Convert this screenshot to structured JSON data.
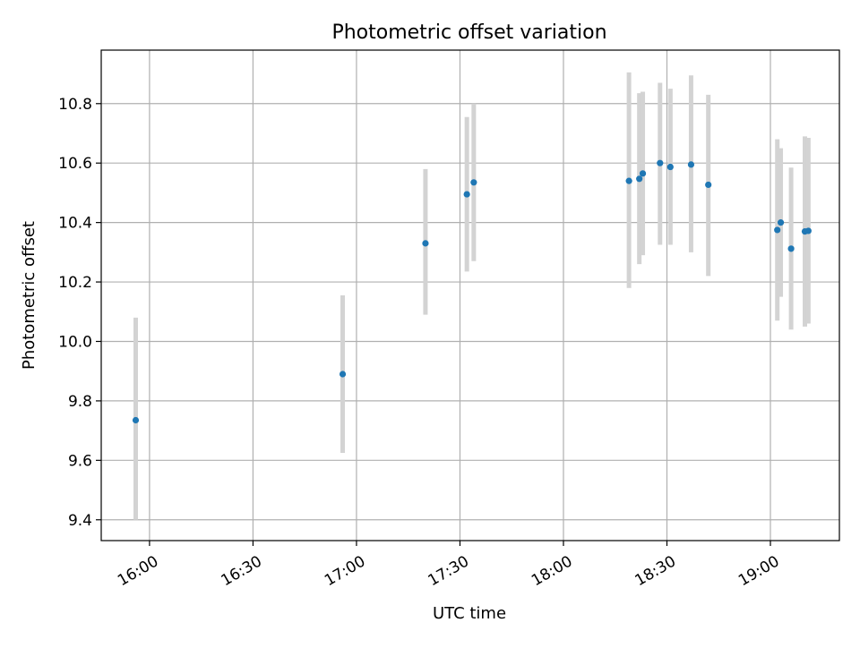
{
  "chart_data": {
    "type": "scatter",
    "title": "Photometric offset variation",
    "xlabel": "UTC time",
    "ylabel": "Photometric offset",
    "x_ticks": [
      "16:00",
      "16:30",
      "17:00",
      "17:30",
      "18:00",
      "18:30",
      "19:00"
    ],
    "y_ticks": [
      "9.4",
      "9.6",
      "9.8",
      "10.0",
      "10.2",
      "10.4",
      "10.6",
      "10.8"
    ],
    "xlim": [
      "15:46",
      "19:20"
    ],
    "ylim": [
      9.33,
      10.98
    ],
    "grid": true,
    "x_axis": "time of day (UTC), HH:MM",
    "series": [
      {
        "marker_color": "#1f77b4",
        "errorbar_color": "#d3d3d3",
        "points": [
          {
            "x": "15:56",
            "y": 9.735,
            "y_low": 9.4,
            "y_high": 10.08
          },
          {
            "x": "16:56",
            "y": 9.89,
            "y_low": 9.625,
            "y_high": 10.155
          },
          {
            "x": "17:20",
            "y": 10.33,
            "y_low": 10.09,
            "y_high": 10.58
          },
          {
            "x": "17:32",
            "y": 10.495,
            "y_low": 10.235,
            "y_high": 10.755
          },
          {
            "x": "17:34",
            "y": 10.535,
            "y_low": 10.27,
            "y_high": 10.8
          },
          {
            "x": "18:19",
            "y": 10.54,
            "y_low": 10.18,
            "y_high": 10.905
          },
          {
            "x": "18:22",
            "y": 10.547,
            "y_low": 10.26,
            "y_high": 10.835
          },
          {
            "x": "18:23",
            "y": 10.565,
            "y_low": 10.29,
            "y_high": 10.84
          },
          {
            "x": "18:28",
            "y": 10.6,
            "y_low": 10.325,
            "y_high": 10.87
          },
          {
            "x": "18:31",
            "y": 10.587,
            "y_low": 10.325,
            "y_high": 10.85
          },
          {
            "x": "18:37",
            "y": 10.595,
            "y_low": 10.3,
            "y_high": 10.895
          },
          {
            "x": "18:42",
            "y": 10.527,
            "y_low": 10.22,
            "y_high": 10.83
          },
          {
            "x": "19:02",
            "y": 10.375,
            "y_low": 10.07,
            "y_high": 10.68
          },
          {
            "x": "19:03",
            "y": 10.4,
            "y_low": 10.15,
            "y_high": 10.65
          },
          {
            "x": "19:06",
            "y": 10.312,
            "y_low": 10.04,
            "y_high": 10.585
          },
          {
            "x": "19:10",
            "y": 10.37,
            "y_low": 10.05,
            "y_high": 10.69
          },
          {
            "x": "19:11",
            "y": 10.372,
            "y_low": 10.06,
            "y_high": 10.685
          }
        ]
      }
    ]
  }
}
